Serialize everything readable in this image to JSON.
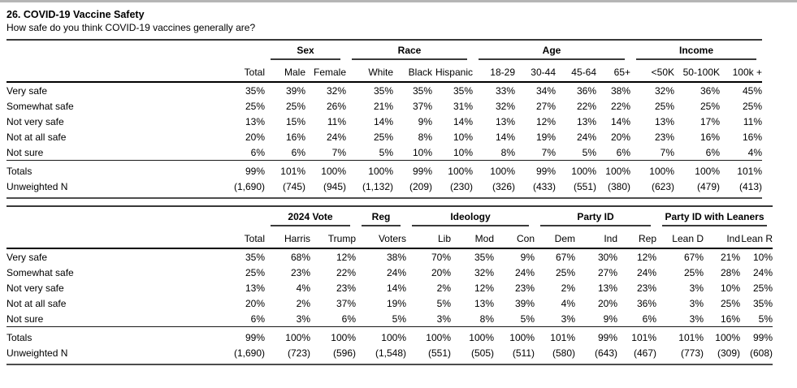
{
  "page": {
    "title": "26. COVID-19 Vaccine Safety",
    "question": "How safe do you think COVID-19 vaccines generally are?"
  },
  "tables": [
    {
      "total_label": "Total",
      "groups": [
        {
          "label": "Sex",
          "cols": [
            "Male",
            "Female"
          ]
        },
        {
          "label": "Race",
          "cols": [
            "White",
            "Black",
            "Hispanic"
          ]
        },
        {
          "label": "Age",
          "cols": [
            "18-29",
            "30-44",
            "45-64",
            "65+"
          ]
        },
        {
          "label": "Income",
          "cols": [
            "<50K",
            "50-100K",
            "100k +"
          ]
        }
      ],
      "rows": [
        {
          "label": "Very safe",
          "values": [
            "35%",
            "39%",
            "32%",
            "35%",
            "35%",
            "35%",
            "33%",
            "34%",
            "36%",
            "38%",
            "32%",
            "36%",
            "45%"
          ]
        },
        {
          "label": "Somewhat safe",
          "values": [
            "25%",
            "25%",
            "26%",
            "21%",
            "37%",
            "31%",
            "32%",
            "27%",
            "22%",
            "22%",
            "25%",
            "25%",
            "25%"
          ]
        },
        {
          "label": "Not very safe",
          "values": [
            "13%",
            "15%",
            "11%",
            "14%",
            "9%",
            "14%",
            "13%",
            "12%",
            "13%",
            "14%",
            "13%",
            "17%",
            "11%"
          ]
        },
        {
          "label": "Not at all safe",
          "values": [
            "20%",
            "16%",
            "24%",
            "25%",
            "8%",
            "10%",
            "14%",
            "19%",
            "24%",
            "20%",
            "23%",
            "16%",
            "16%"
          ]
        },
        {
          "label": "Not sure",
          "values": [
            "6%",
            "6%",
            "7%",
            "5%",
            "10%",
            "10%",
            "8%",
            "7%",
            "5%",
            "6%",
            "7%",
            "6%",
            "4%"
          ]
        }
      ],
      "totals": {
        "label": "Totals",
        "values": [
          "99%",
          "101%",
          "100%",
          "100%",
          "99%",
          "100%",
          "100%",
          "99%",
          "100%",
          "100%",
          "100%",
          "100%",
          "101%"
        ]
      },
      "unweighted": {
        "label": "Unweighted N",
        "values": [
          "(1,690)",
          "(745)",
          "(945)",
          "(1,132)",
          "(209)",
          "(230)",
          "(326)",
          "(433)",
          "(551)",
          "(380)",
          "(623)",
          "(479)",
          "(413)"
        ]
      }
    },
    {
      "total_label": "Total",
      "groups": [
        {
          "label": "2024 Vote",
          "cols": [
            "Harris",
            "Trump"
          ]
        },
        {
          "label": "Reg",
          "cols": [
            "Voters"
          ]
        },
        {
          "label": "Ideology",
          "cols": [
            "Lib",
            "Mod",
            "Con"
          ]
        },
        {
          "label": "Party ID",
          "cols": [
            "Dem",
            "Ind",
            "Rep"
          ]
        },
        {
          "label": "Party ID with Leaners",
          "cols": [
            "Lean D",
            "Ind",
            "Lean R"
          ]
        }
      ],
      "rows": [
        {
          "label": "Very safe",
          "values": [
            "35%",
            "68%",
            "12%",
            "38%",
            "70%",
            "35%",
            "9%",
            "67%",
            "30%",
            "12%",
            "67%",
            "21%",
            "10%"
          ]
        },
        {
          "label": "Somewhat safe",
          "values": [
            "25%",
            "23%",
            "22%",
            "24%",
            "20%",
            "32%",
            "24%",
            "25%",
            "27%",
            "24%",
            "25%",
            "28%",
            "24%"
          ]
        },
        {
          "label": "Not very safe",
          "values": [
            "13%",
            "4%",
            "23%",
            "14%",
            "2%",
            "12%",
            "23%",
            "2%",
            "13%",
            "23%",
            "3%",
            "10%",
            "25%"
          ]
        },
        {
          "label": "Not at all safe",
          "values": [
            "20%",
            "2%",
            "37%",
            "19%",
            "5%",
            "13%",
            "39%",
            "4%",
            "20%",
            "36%",
            "3%",
            "25%",
            "35%"
          ]
        },
        {
          "label": "Not sure",
          "values": [
            "6%",
            "3%",
            "6%",
            "5%",
            "3%",
            "8%",
            "5%",
            "3%",
            "9%",
            "6%",
            "3%",
            "16%",
            "5%"
          ]
        }
      ],
      "totals": {
        "label": "Totals",
        "values": [
          "99%",
          "100%",
          "100%",
          "100%",
          "100%",
          "100%",
          "100%",
          "101%",
          "99%",
          "101%",
          "101%",
          "100%",
          "99%"
        ]
      },
      "unweighted": {
        "label": "Unweighted N",
        "values": [
          "(1,690)",
          "(723)",
          "(596)",
          "(1,548)",
          "(551)",
          "(505)",
          "(511)",
          "(580)",
          "(643)",
          "(467)",
          "(773)",
          "(309)",
          "(608)"
        ]
      }
    }
  ]
}
